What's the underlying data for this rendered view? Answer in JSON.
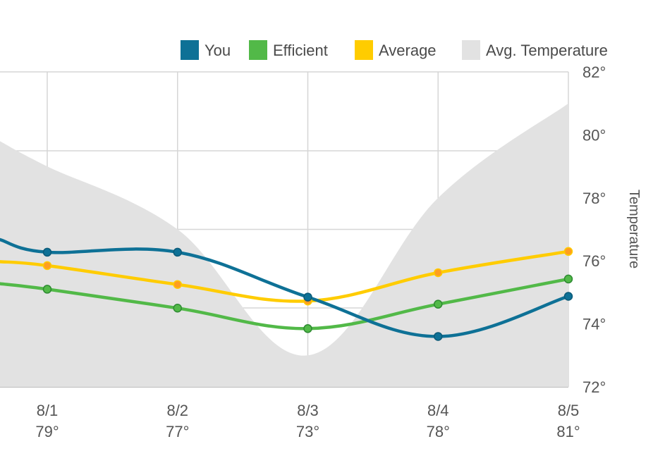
{
  "chart_data": {
    "type": "line",
    "categories": [
      "8/1",
      "8/2",
      "8/3",
      "8/4",
      "8/5"
    ],
    "category_sublabels": [
      "79°",
      "77°",
      "73°",
      "78°",
      "81°"
    ],
    "ylabel": "Temperature",
    "y_ticks": [
      "72°",
      "74°",
      "76°",
      "78°",
      "80°",
      "82°"
    ],
    "legend_position": "top-right",
    "grid": true,
    "series": [
      {
        "name": "You",
        "color": "#0e7196",
        "values": [
          17.1,
          17.1,
          11.4,
          6.4,
          11.5
        ],
        "lead_in": 18.7
      },
      {
        "name": "Efficient",
        "color": "#52b948",
        "values": [
          12.4,
          10.0,
          7.4,
          10.5,
          13.7
        ],
        "lead_in": 13.1
      },
      {
        "name": "Average",
        "color": "#ffcc00",
        "values": [
          15.4,
          13.0,
          10.9,
          14.5,
          17.2
        ],
        "lead_in": 15.9
      }
    ],
    "area": {
      "name": "Avg. Temperature",
      "color": "#e2e2e2",
      "values": [
        79,
        77,
        73,
        78,
        81
      ],
      "lead_in": 79.8
    },
    "left_axis_range": [
      0,
      40
    ],
    "right_axis_range": [
      72,
      82
    ]
  }
}
